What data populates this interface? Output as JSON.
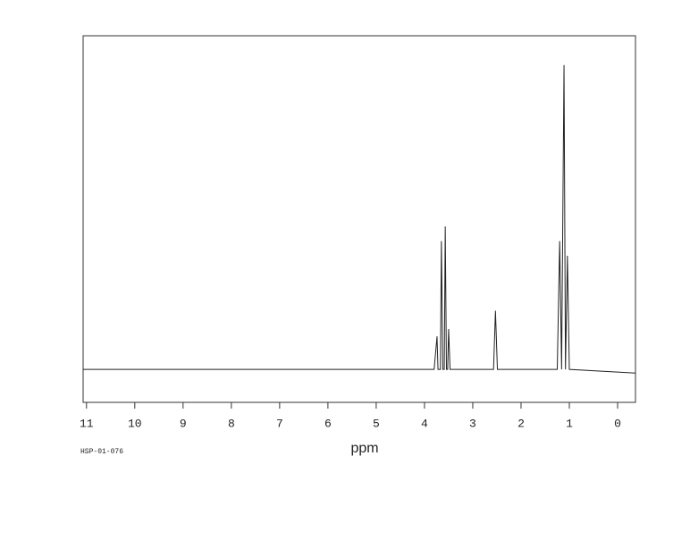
{
  "chart_data": {
    "type": "line",
    "xlabel": "ppm",
    "footnote": "HSP-01-076",
    "x": [
      11.07,
      3.8,
      3.74,
      3.72,
      3.67,
      3.65,
      3.62,
      3.59,
      3.57,
      3.545,
      3.52,
      3.5,
      3.47,
      2.57,
      2.53,
      2.49,
      1.25,
      1.2,
      1.16,
      1.11,
      1.08,
      1.04,
      1.0,
      -0.37
    ],
    "values": [
      9,
      9,
      18,
      9,
      9,
      44,
      9,
      9,
      48,
      9,
      9,
      20,
      9,
      9,
      25,
      9,
      9,
      44,
      9,
      92,
      9,
      40,
      9,
      8
    ],
    "color": "#222222",
    "xlim": [
      11.07,
      -0.37
    ],
    "ylim": [
      0,
      100
    ],
    "xticks": [
      11,
      10,
      9,
      8,
      7,
      6,
      5,
      4,
      3,
      2,
      1,
      0
    ]
  }
}
